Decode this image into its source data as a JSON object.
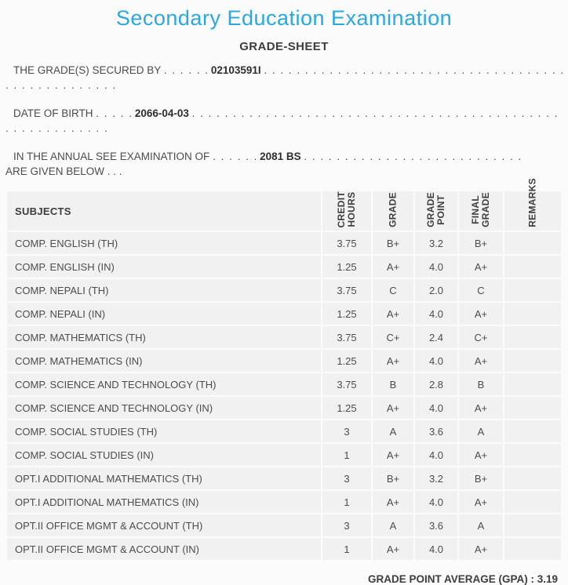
{
  "header": {
    "title": "Secondary Education Examination",
    "subtitle": "GRADE-SHEET"
  },
  "statements": [
    {
      "label": "THE GRADE(S) SECURED BY",
      "dots_before": ". . . . . .",
      "value": "02103591I",
      "dots_after": ". . . . . . . . . . . . . . . . . . . . . . . . . . . . . . . . . . . . . . . . . . . . . . . . . .",
      "line2": ". . . . . . . . . . . . . ."
    },
    {
      "label": "DATE OF BIRTH",
      "dots_before": ". . . . .",
      "value": "2066-04-03",
      "dots_after": ". . . . . . . . . . . . . . . . . . . . . . . . . . . . . . . . . . . . . . . . . . . . . . . . . . . . . . . . . . . .",
      "line2": ". . . . . . . . . . . . ."
    },
    {
      "label": "IN THE ANNUAL SEE EXAMINATION OF",
      "dots_before": ". . . . . .",
      "value": "2081 BS",
      "dots_after": ". . . . . . . . . . . . . . . . . . . . . . . . . . .",
      "line2": "ARE GIVEN BELOW . . ."
    }
  ],
  "table": {
    "columns": [
      "SUBJECTS",
      "CREDIT\nHOURS",
      "GRADE",
      "GRADE\nPOINT",
      "FINAL\nGRADE",
      "REMARKS"
    ],
    "row_keys": [
      "subject",
      "credit_hours",
      "grade",
      "grade_point",
      "final_grade",
      "remarks"
    ],
    "rows": [
      {
        "subject": "COMP. ENGLISH (TH)",
        "credit_hours": "3.75",
        "grade": "B+",
        "grade_point": "3.2",
        "final_grade": "B+",
        "remarks": ""
      },
      {
        "subject": "COMP. ENGLISH (IN)",
        "credit_hours": "1.25",
        "grade": "A+",
        "grade_point": "4.0",
        "final_grade": "A+",
        "remarks": ""
      },
      {
        "subject": "COMP. NEPALI (TH)",
        "credit_hours": "3.75",
        "grade": "C",
        "grade_point": "2.0",
        "final_grade": "C",
        "remarks": ""
      },
      {
        "subject": "COMP. NEPALI (IN)",
        "credit_hours": "1.25",
        "grade": "A+",
        "grade_point": "4.0",
        "final_grade": "A+",
        "remarks": ""
      },
      {
        "subject": "COMP. MATHEMATICS (TH)",
        "credit_hours": "3.75",
        "grade": "C+",
        "grade_point": "2.4",
        "final_grade": "C+",
        "remarks": ""
      },
      {
        "subject": "COMP. MATHEMATICS (IN)",
        "credit_hours": "1.25",
        "grade": "A+",
        "grade_point": "4.0",
        "final_grade": "A+",
        "remarks": ""
      },
      {
        "subject": "COMP. SCIENCE AND TECHNOLOGY (TH)",
        "credit_hours": "3.75",
        "grade": "B",
        "grade_point": "2.8",
        "final_grade": "B",
        "remarks": ""
      },
      {
        "subject": "COMP. SCIENCE AND TECHNOLOGY (IN)",
        "credit_hours": "1.25",
        "grade": "A+",
        "grade_point": "4.0",
        "final_grade": "A+",
        "remarks": ""
      },
      {
        "subject": "COMP. SOCIAL STUDIES (TH)",
        "credit_hours": "3",
        "grade": "A",
        "grade_point": "3.6",
        "final_grade": "A",
        "remarks": ""
      },
      {
        "subject": "COMP. SOCIAL STUDIES (IN)",
        "credit_hours": "1",
        "grade": "A+",
        "grade_point": "4.0",
        "final_grade": "A+",
        "remarks": ""
      },
      {
        "subject": "OPT.I ADDITIONAL MATHEMATICS (TH)",
        "credit_hours": "3",
        "grade": "B+",
        "grade_point": "3.2",
        "final_grade": "B+",
        "remarks": ""
      },
      {
        "subject": "OPT.I ADDITIONAL MATHEMATICS (IN)",
        "credit_hours": "1",
        "grade": "A+",
        "grade_point": "4.0",
        "final_grade": "A+",
        "remarks": ""
      },
      {
        "subject": "OPT.II OFFICE MGMT & ACCOUNT (TH)",
        "credit_hours": "3",
        "grade": "A",
        "grade_point": "3.6",
        "final_grade": "A",
        "remarks": ""
      },
      {
        "subject": "OPT.II OFFICE MGMT & ACCOUNT (IN)",
        "credit_hours": "1",
        "grade": "A+",
        "grade_point": "4.0",
        "final_grade": "A+",
        "remarks": ""
      }
    ]
  },
  "footer": {
    "gpa_label": "GRADE POINT AVERAGE (GPA)",
    "gpa_separator": " : ",
    "gpa_value": "3.19"
  },
  "colors": {
    "title_accent": "#2AA8E0",
    "heading_text": "#3D3D3D",
    "body_text": "#4C4C4C",
    "value_text": "#2E2E2E",
    "row_background": "#F1F1F1",
    "page_background": "#FBFBFB"
  }
}
